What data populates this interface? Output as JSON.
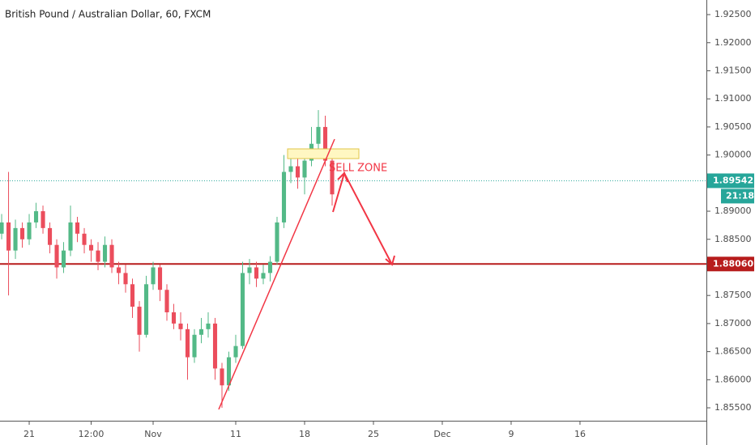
{
  "chart_data": {
    "type": "candlestick",
    "title": "British Pound / Australian Dollar, 60, FXCM",
    "x": [
      -2,
      -1.5,
      -1,
      -0.5,
      0,
      0.5,
      1,
      1.5,
      2,
      2.5,
      3,
      3.5,
      4,
      4.5,
      5,
      5.5,
      6,
      6.5,
      7,
      7.5,
      8,
      8.5,
      9,
      9.5,
      10,
      10.5,
      11,
      11.5,
      12,
      12.5,
      13,
      13.5,
      14,
      14.5,
      15,
      15.5,
      16,
      16.5,
      17,
      17.5,
      18,
      18.5,
      19,
      19.5,
      20,
      20.5,
      21,
      21.5,
      22
    ],
    "open": [
      1.886,
      1.888,
      1.883,
      1.887,
      1.885,
      1.888,
      1.89,
      1.887,
      1.884,
      1.88,
      1.883,
      1.888,
      1.886,
      1.884,
      1.883,
      1.881,
      1.884,
      1.88,
      1.879,
      1.877,
      1.873,
      1.868,
      1.877,
      1.88,
      1.876,
      1.872,
      1.87,
      1.869,
      1.864,
      1.868,
      1.869,
      1.87,
      1.862,
      1.859,
      1.864,
      1.866,
      1.879,
      1.88,
      1.878,
      1.879,
      1.881,
      1.888,
      1.897,
      1.898,
      1.896,
      1.899,
      1.902,
      1.905,
      1.899
    ],
    "high": [
      1.8895,
      1.897,
      1.8885,
      1.888,
      1.8895,
      1.8915,
      1.891,
      1.888,
      1.885,
      1.8845,
      1.891,
      1.889,
      1.887,
      1.885,
      1.8845,
      1.8855,
      1.885,
      1.881,
      1.8805,
      1.878,
      1.874,
      1.8785,
      1.881,
      1.8805,
      1.877,
      1.8735,
      1.872,
      1.87,
      1.869,
      1.871,
      1.872,
      1.871,
      1.863,
      1.865,
      1.868,
      1.881,
      1.8815,
      1.881,
      1.8805,
      1.882,
      1.889,
      1.9,
      1.901,
      1.8995,
      1.901,
      1.905,
      1.908,
      1.907,
      1.9
    ],
    "low": [
      1.885,
      1.875,
      1.8815,
      1.8835,
      1.884,
      1.887,
      1.886,
      1.8825,
      1.878,
      1.879,
      1.882,
      1.8845,
      1.8825,
      1.881,
      1.8795,
      1.88,
      1.879,
      1.877,
      1.8755,
      1.871,
      1.865,
      1.8675,
      1.876,
      1.874,
      1.8705,
      1.869,
      1.867,
      1.86,
      1.863,
      1.8665,
      1.8675,
      1.86,
      1.855,
      1.858,
      1.863,
      1.8655,
      1.877,
      1.8765,
      1.877,
      1.8775,
      1.8805,
      1.887,
      1.895,
      1.894,
      1.893,
      1.898,
      1.901,
      1.898,
      1.891
    ],
    "close": [
      1.888,
      1.883,
      1.887,
      1.885,
      1.888,
      1.89,
      1.887,
      1.884,
      1.88,
      1.883,
      1.888,
      1.886,
      1.884,
      1.883,
      1.881,
      1.884,
      1.88,
      1.879,
      1.877,
      1.873,
      1.868,
      1.877,
      1.88,
      1.876,
      1.872,
      1.87,
      1.869,
      1.864,
      1.868,
      1.869,
      1.87,
      1.862,
      1.859,
      1.864,
      1.866,
      1.879,
      1.88,
      1.878,
      1.879,
      1.881,
      1.888,
      1.897,
      1.898,
      1.896,
      1.899,
      1.902,
      1.905,
      1.899,
      1.893
    ],
    "up_color": "#53b987",
    "down_color": "#eb4d5c",
    "xlim": [
      -2.12,
      49.18
    ],
    "xticks": [
      {
        "value": 0,
        "label": "21"
      },
      {
        "value": 4.5,
        "label": "12:00"
      },
      {
        "value": 9,
        "label": "Nov"
      },
      {
        "value": 15,
        "label": "11"
      },
      {
        "value": 20,
        "label": "18"
      },
      {
        "value": 25,
        "label": "25"
      },
      {
        "value": 30,
        "label": "Dec"
      },
      {
        "value": 35,
        "label": "9"
      },
      {
        "value": 40,
        "label": "16"
      }
    ],
    "ylim": [
      1.8527,
      1.9276
    ],
    "yticks": [
      {
        "value": 1.855,
        "label": "1.85500"
      },
      {
        "value": 1.86,
        "label": "1.86000"
      },
      {
        "value": 1.865,
        "label": "1.86500"
      },
      {
        "value": 1.87,
        "label": "1.87000"
      },
      {
        "value": 1.875,
        "label": "1.87500"
      },
      {
        "value": 1.88,
        "label": "1.88000"
      },
      {
        "value": 1.885,
        "label": "1.88500"
      },
      {
        "value": 1.89,
        "label": "1.89000"
      },
      {
        "value": 1.895,
        "label": "1.89500"
      },
      {
        "value": 1.9,
        "label": "1.90000"
      },
      {
        "value": 1.905,
        "label": "1.90500"
      },
      {
        "value": 1.91,
        "label": "1.91000"
      },
      {
        "value": 1.915,
        "label": "1.91500"
      },
      {
        "value": 1.92,
        "label": "1.92000"
      },
      {
        "value": 1.925,
        "label": "1.92500"
      }
    ],
    "grid": false,
    "last_price": {
      "value": 1.89542,
      "label": "1.89542",
      "color": "#26a69a",
      "countdown": "21:18"
    },
    "level": {
      "value": 1.8806,
      "label": "1.88060",
      "color": "#b71c1c"
    },
    "annotation": "SELL ZONE"
  }
}
